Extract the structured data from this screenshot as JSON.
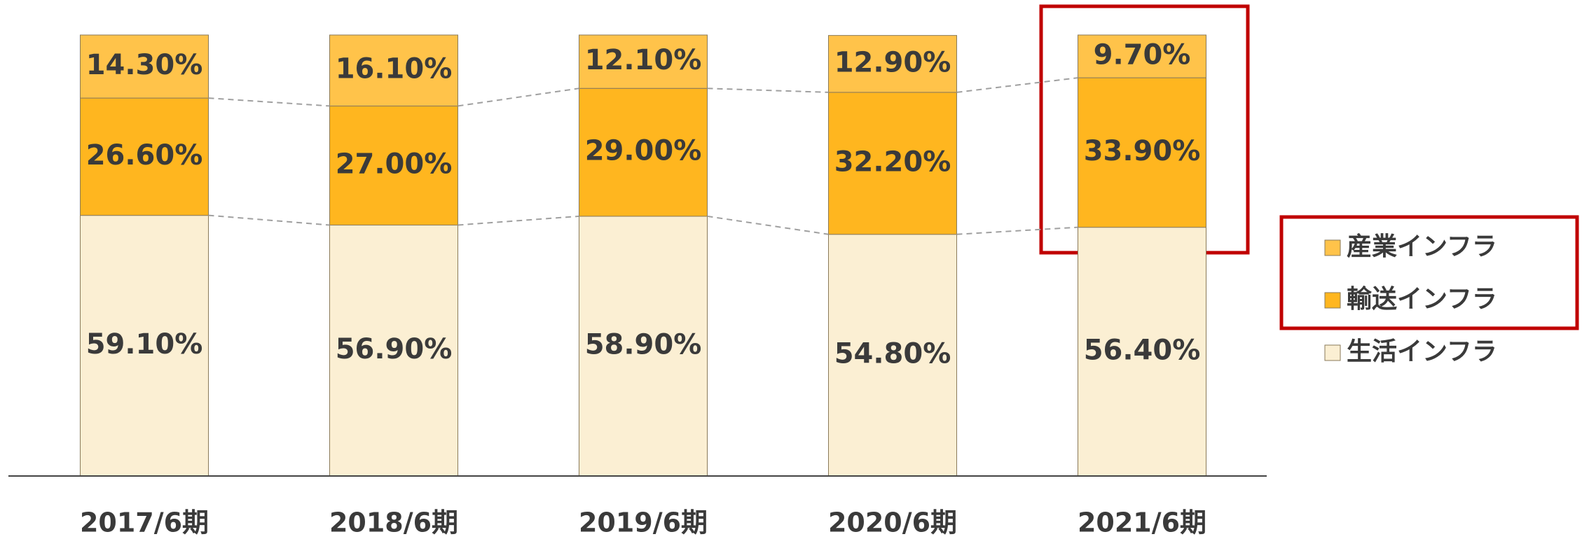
{
  "chart_data": {
    "type": "stacked_bar",
    "categories": [
      "2017/6期",
      "2018/6期",
      "2019/6期",
      "2020/6期",
      "2021/6期"
    ],
    "series": [
      {
        "name": "生活インフラ",
        "color": "#fbefd3",
        "values": [
          59.1,
          56.9,
          58.9,
          54.8,
          56.4
        ],
        "value_labels": [
          "59.10%",
          "56.90%",
          "58.90%",
          "54.80%",
          "56.40%"
        ]
      },
      {
        "name": "輸送インフラ",
        "color": "#ffb61f",
        "values": [
          26.6,
          27.0,
          29.0,
          32.2,
          33.9
        ],
        "value_labels": [
          "26.60%",
          "27.00%",
          "29.00%",
          "32.20%",
          "33.90%"
        ]
      },
      {
        "name": "産業インフラ",
        "color": "#ffc34a",
        "values": [
          14.3,
          16.1,
          12.1,
          12.9,
          9.7
        ],
        "value_labels": [
          "14.30%",
          "16.10%",
          "12.10%",
          "12.90%",
          "9.70%"
        ]
      }
    ],
    "ylim": [
      0,
      100
    ]
  }
}
